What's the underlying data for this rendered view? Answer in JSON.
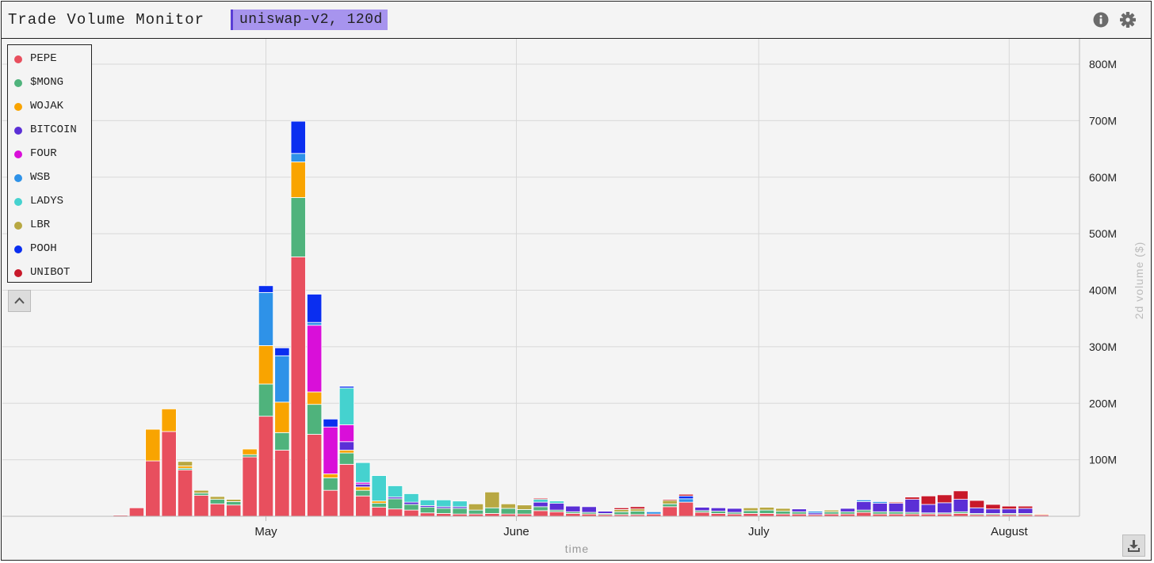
{
  "header": {
    "title": "Trade Volume Monitor",
    "badge": "uniswap-v2, 120d",
    "info_icon": "info-icon",
    "settings_icon": "gear-icon"
  },
  "controls": {
    "collapse_icon": "chevron-up-icon",
    "download_icon": "download-icon"
  },
  "legend": [
    {
      "name": "PEPE",
      "color": "#e84f5e"
    },
    {
      "name": "$MONG",
      "color": "#4fb37c"
    },
    {
      "name": "WOJAK",
      "color": "#f9a400"
    },
    {
      "name": "BITCOIN",
      "color": "#5b2fd6"
    },
    {
      "name": "FOUR",
      "color": "#d90fd9"
    },
    {
      "name": "WSB",
      "color": "#2e92e8"
    },
    {
      "name": "LADYS",
      "color": "#45d2cf"
    },
    {
      "name": "LBR",
      "color": "#b8a842"
    },
    {
      "name": "POOH",
      "color": "#0a2ef0"
    },
    {
      "name": "UNIBOT",
      "color": "#c8192a"
    }
  ],
  "chart_data": {
    "type": "bar",
    "stacked": true,
    "xlabel": "time",
    "ylabel": "2d volume ($)",
    "y_ticks": [
      "100M",
      "200M",
      "300M",
      "400M",
      "500M",
      "600M",
      "700M",
      "800M"
    ],
    "x_ticks": [
      "May",
      "June",
      "July",
      "August"
    ],
    "ylim": [
      0,
      800
    ],
    "grid": true,
    "legend_position": "top-left",
    "series_order": [
      "PEPE",
      "$MONG",
      "WOJAK",
      "BITCOIN",
      "FOUR",
      "WSB",
      "LADYS",
      "LBR",
      "POOH",
      "UNIBOT"
    ],
    "bars": [
      {
        "date": "2023-04-13",
        "PEPE": 2
      },
      {
        "date": "2023-04-15",
        "PEPE": 15
      },
      {
        "date": "2023-04-17",
        "PEPE": 98,
        "WOJAK": 56
      },
      {
        "date": "2023-04-19",
        "PEPE": 150,
        "WOJAK": 40
      },
      {
        "date": "2023-04-21",
        "PEPE": 82,
        "$MONG": 3,
        "LBR": 8,
        "WOJAK": 4
      },
      {
        "date": "2023-04-23",
        "PEPE": 37,
        "$MONG": 4,
        "LBR": 5
      },
      {
        "date": "2023-04-25",
        "PEPE": 22,
        "$MONG": 8,
        "LBR": 5
      },
      {
        "date": "2023-04-27",
        "PEPE": 20,
        "$MONG": 6,
        "LBR": 4
      },
      {
        "date": "2023-04-29",
        "PEPE": 105,
        "WOJAK": 10,
        "$MONG": 4
      },
      {
        "date": "2023-05-01",
        "PEPE": 177,
        "$MONG": 57,
        "WOJAK": 68,
        "WSB": 94,
        "POOH": 12
      },
      {
        "date": "2023-05-03",
        "PEPE": 117,
        "$MONG": 31,
        "WOJAK": 54,
        "WSB": 82,
        "POOH": 14
      },
      {
        "date": "2023-05-05",
        "PEPE": 459,
        "$MONG": 105,
        "WOJAK": 63,
        "WSB": 15,
        "POOH": 57
      },
      {
        "date": "2023-05-07",
        "PEPE": 145,
        "$MONG": 53,
        "WOJAK": 22,
        "FOUR": 118,
        "WSB": 5,
        "POOH": 50
      },
      {
        "date": "2023-05-09",
        "PEPE": 46,
        "$MONG": 22,
        "WOJAK": 7,
        "FOUR": 83,
        "POOH": 14
      },
      {
        "date": "2023-05-11",
        "PEPE": 92,
        "$MONG": 20,
        "WOJAK": 5,
        "BITCOIN": 15,
        "FOUR": 30,
        "LADYS": 65,
        "POOH": 3
      },
      {
        "date": "2023-05-13",
        "PEPE": 36,
        "$MONG": 10,
        "WOJAK": 6,
        "BITCOIN": 5,
        "FOUR": 3,
        "LADYS": 35
      },
      {
        "date": "2023-05-15",
        "PEPE": 16,
        "$MONG": 7,
        "WOJAK": 4,
        "LADYS": 45
      },
      {
        "date": "2023-05-17",
        "PEPE": 13,
        "$MONG": 18,
        "LADYS": 20,
        "BITCOIN": 3
      },
      {
        "date": "2023-05-19",
        "PEPE": 11,
        "$MONG": 10,
        "LADYS": 15,
        "BITCOIN": 4
      },
      {
        "date": "2023-05-21",
        "PEPE": 6,
        "$MONG": 10,
        "LADYS": 10,
        "BITCOIN": 3
      },
      {
        "date": "2023-05-23",
        "PEPE": 5,
        "$MONG": 9,
        "LADYS": 12,
        "BITCOIN": 3
      },
      {
        "date": "2023-05-25",
        "PEPE": 4,
        "$MONG": 10,
        "LADYS": 10,
        "BITCOIN": 3
      },
      {
        "date": "2023-05-27",
        "PEPE": 4,
        "$MONG": 7,
        "LBR": 11
      },
      {
        "date": "2023-05-29",
        "PEPE": 5,
        "$MONG": 10,
        "LBR": 28
      },
      {
        "date": "2023-05-31",
        "PEPE": 4,
        "$MONG": 10,
        "LBR": 8
      },
      {
        "date": "2023-06-02",
        "PEPE": 4,
        "$MONG": 8,
        "LBR": 8
      },
      {
        "date": "2023-06-04",
        "PEPE": 10,
        "$MONG": 7,
        "BITCOIN": 8,
        "LADYS": 5,
        "UNIBOT": 2
      },
      {
        "date": "2023-06-06",
        "PEPE": 8,
        "$MONG": 3,
        "BITCOIN": 12,
        "LADYS": 4
      },
      {
        "date": "2023-06-08",
        "PEPE": 5,
        "$MONG": 3,
        "BITCOIN": 10
      },
      {
        "date": "2023-06-10",
        "PEPE": 4,
        "$MONG": 3,
        "BITCOIN": 10
      },
      {
        "date": "2023-06-12",
        "PEPE": 3,
        "$MONG": 2,
        "BITCOIN": 4
      },
      {
        "date": "2023-06-14",
        "PEPE": 3,
        "$MONG": 5,
        "LBR": 4,
        "UNIBOT": 3
      },
      {
        "date": "2023-06-16",
        "PEPE": 3,
        "$MONG": 6,
        "LBR": 4,
        "UNIBOT": 4
      },
      {
        "date": "2023-06-18",
        "PEPE": 4,
        "WSB": 4
      },
      {
        "date": "2023-06-20",
        "PEPE": 17,
        "$MONG": 5,
        "LBR": 6,
        "UNIBOT": 2
      },
      {
        "date": "2023-06-22",
        "PEPE": 25,
        "WSB": 6,
        "POOH": 5,
        "UNIBOT": 3
      },
      {
        "date": "2023-06-24",
        "PEPE": 7,
        "$MONG": 3,
        "BITCOIN": 6
      },
      {
        "date": "2023-06-26",
        "PEPE": 5,
        "$MONG": 4,
        "BITCOIN": 6
      },
      {
        "date": "2023-06-28",
        "PEPE": 4,
        "$MONG": 3,
        "BITCOIN": 7
      },
      {
        "date": "2023-06-30",
        "PEPE": 5,
        "$MONG": 5,
        "LBR": 5
      },
      {
        "date": "2023-07-02",
        "PEPE": 5,
        "$MONG": 6,
        "LBR": 5
      },
      {
        "date": "2023-07-04",
        "PEPE": 4,
        "$MONG": 5,
        "LBR": 5
      },
      {
        "date": "2023-07-06",
        "PEPE": 4,
        "$MONG": 4,
        "BITCOIN": 5
      },
      {
        "date": "2023-07-08",
        "PEPE": 3,
        "WSB": 3,
        "BITCOIN": 3
      },
      {
        "date": "2023-07-10",
        "PEPE": 4,
        "$MONG": 4,
        "LBR": 3
      },
      {
        "date": "2023-07-12",
        "PEPE": 4,
        "$MONG": 4,
        "BITCOIN": 6
      },
      {
        "date": "2023-07-14",
        "PEPE": 7,
        "$MONG": 4,
        "BITCOIN": 15,
        "WSB": 3
      },
      {
        "date": "2023-07-16",
        "PEPE": 4,
        "$MONG": 4,
        "BITCOIN": 15,
        "WSB": 3
      },
      {
        "date": "2023-07-18",
        "PEPE": 4,
        "$MONG": 4,
        "BITCOIN": 15,
        "UNIBOT": 2
      },
      {
        "date": "2023-07-20",
        "PEPE": 4,
        "$MONG": 3,
        "BITCOIN": 23,
        "UNIBOT": 4
      },
      {
        "date": "2023-07-22",
        "PEPE": 4,
        "$MONG": 2,
        "BITCOIN": 15,
        "UNIBOT": 15
      },
      {
        "date": "2023-07-24",
        "PEPE": 4,
        "$MONG": 2,
        "BITCOIN": 18,
        "UNIBOT": 14
      },
      {
        "date": "2023-07-26",
        "PEPE": 5,
        "$MONG": 3,
        "BITCOIN": 22,
        "UNIBOT": 15
      },
      {
        "date": "2023-07-28",
        "PEPE": 3,
        "$MONG": 2,
        "BITCOIN": 10,
        "UNIBOT": 13
      },
      {
        "date": "2023-07-30",
        "PEPE": 3,
        "$MONG": 2,
        "BITCOIN": 8,
        "UNIBOT": 8
      },
      {
        "date": "2023-08-01",
        "PEPE": 3,
        "$MONG": 2,
        "BITCOIN": 8,
        "UNIBOT": 5
      },
      {
        "date": "2023-08-03",
        "PEPE": 3,
        "$MONG": 2,
        "BITCOIN": 9,
        "UNIBOT": 4
      },
      {
        "date": "2023-08-05",
        "PEPE": 3,
        "WOJAK": 1
      }
    ]
  }
}
